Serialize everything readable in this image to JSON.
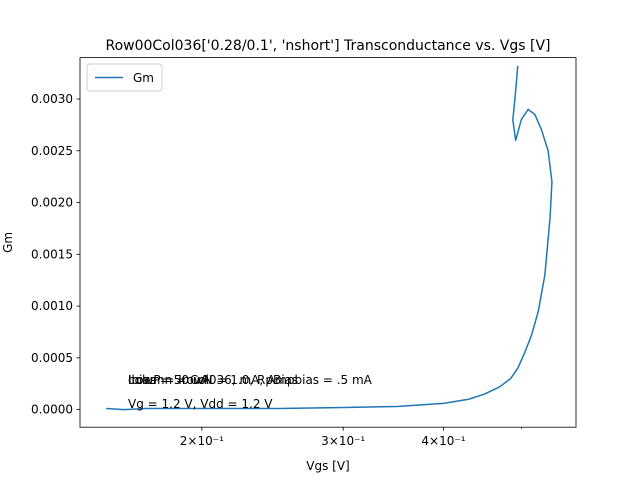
{
  "chart_data": {
    "type": "line",
    "title": "Row00Col036['0.28/0.1', 'nshort'] Transconductance vs. Vgs [V]",
    "xlabel": "Vgs [V]",
    "ylabel": "Gm",
    "xscale": "log",
    "xlim": [
      0.141,
      0.585
    ],
    "ylim": [
      -0.00017,
      0.0034
    ],
    "grid": false,
    "legend_placement": "upper-left",
    "line_color": "#1f77b4",
    "x_ticks": [
      {
        "value": 0.2,
        "label": "2×10⁻¹"
      },
      {
        "value": 0.3,
        "label": "3×10⁻¹"
      },
      {
        "value": 0.4,
        "label": "4×10⁻¹"
      }
    ],
    "y_ticks": [
      {
        "value": 0.0,
        "label": "0.0000"
      },
      {
        "value": 0.0005,
        "label": "0.0005"
      },
      {
        "value": 0.001,
        "label": "0.0010"
      },
      {
        "value": 0.0015,
        "label": "0.0015"
      },
      {
        "value": 0.002,
        "label": "0.0020"
      },
      {
        "value": 0.0025,
        "label": "0.0025"
      },
      {
        "value": 0.003,
        "label": "0.0030"
      }
    ],
    "series": [
      {
        "name": "Gm",
        "x": [
          0.152,
          0.16,
          0.17,
          0.18,
          0.2,
          0.25,
          0.3,
          0.35,
          0.4,
          0.43,
          0.45,
          0.47,
          0.485,
          0.495,
          0.505,
          0.515,
          0.525,
          0.535,
          0.543,
          0.546,
          0.54,
          0.53,
          0.52,
          0.51,
          0.5,
          0.492,
          0.49,
          0.488,
          0.491,
          0.495
        ],
        "y": [
          1e-05,
          0.0,
          1e-05,
          1e-05,
          1e-05,
          1e-05,
          2e-05,
          3e-05,
          6e-05,
          0.0001,
          0.00015,
          0.00022,
          0.0003,
          0.0004,
          0.00055,
          0.00072,
          0.00095,
          0.0013,
          0.00185,
          0.0022,
          0.0025,
          0.0027,
          0.00285,
          0.0029,
          0.0028,
          0.0026,
          0.0027,
          0.0028,
          0.003,
          0.00332
        ]
      }
    ],
    "annotations": [
      "Ibias = 50 uA",
      "column = Col036, mA, Ampbias = .5 mA",
      "IrowP = IrowN = 1.0, RpBias",
      "Vg = 1.2 V, Vdd = 1.2 V"
    ]
  }
}
